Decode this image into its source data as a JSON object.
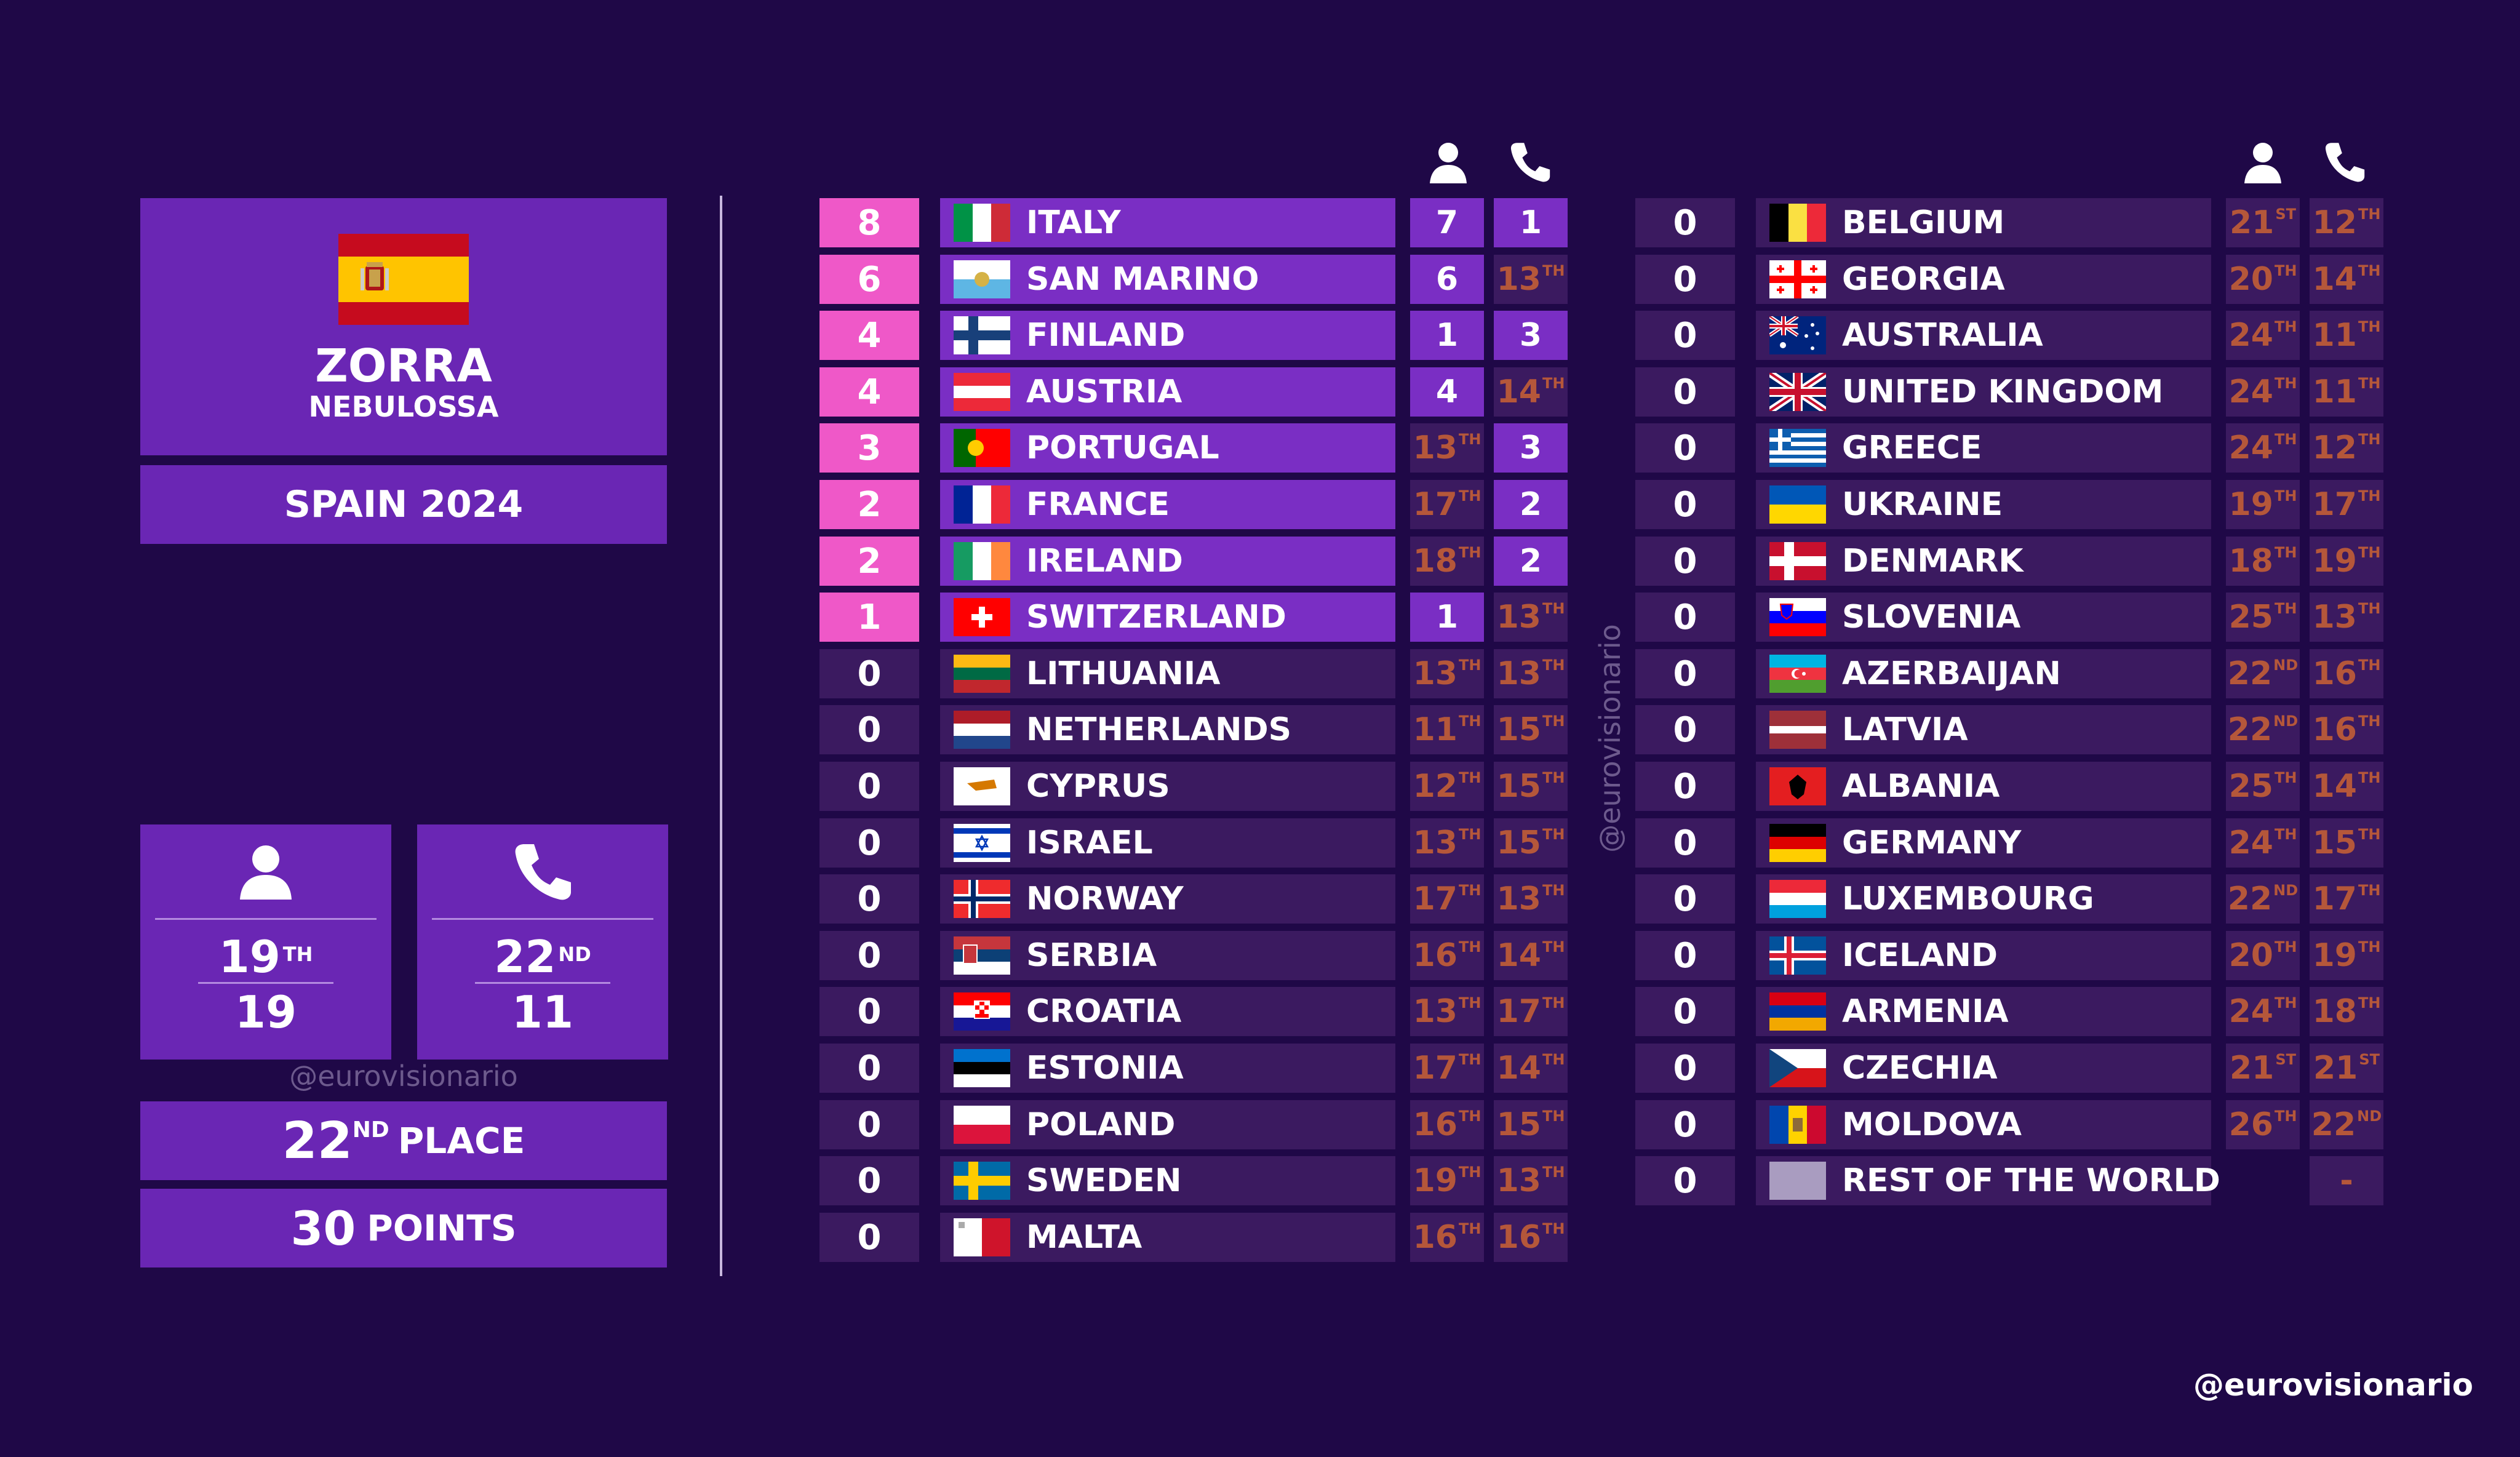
{
  "left": {
    "artist": "ZORRA",
    "song": "NEBULOSSA",
    "country_year": "SPAIN 2024",
    "jury": {
      "rank": "19",
      "rank_suffix": "TH",
      "points": "19"
    },
    "televote": {
      "rank": "22",
      "rank_suffix": "ND",
      "points": "11"
    },
    "watermark": "@eurovisionario",
    "place_num": "22",
    "place_suffix": "ND",
    "place_label": "PLACE",
    "points_num": "30",
    "points_label": "POINTS"
  },
  "vertical_watermark": "@eurovisionario",
  "footer_handle": "@eurovisionario",
  "icons": {
    "jury": "person-icon",
    "televote": "phone-icon"
  },
  "colors": {
    "background": "#1f0847",
    "panel": "#6a26b4",
    "row": "#3b1a60",
    "highlight": "#ef58c8",
    "active": "#7a2ec4",
    "rank_text": "#b5573a"
  },
  "left_table": [
    {
      "points": "8",
      "country": "ITALY",
      "jury": "7",
      "jury_suf": "",
      "tele": "1",
      "tele_suf": "",
      "flag": "it"
    },
    {
      "points": "6",
      "country": "SAN MARINO",
      "jury": "6",
      "jury_suf": "",
      "tele": "13",
      "tele_suf": "TH",
      "flag": "sm"
    },
    {
      "points": "4",
      "country": "FINLAND",
      "jury": "1",
      "jury_suf": "",
      "tele": "3",
      "tele_suf": "",
      "flag": "fi"
    },
    {
      "points": "4",
      "country": "AUSTRIA",
      "jury": "4",
      "jury_suf": "",
      "tele": "14",
      "tele_suf": "TH",
      "flag": "at"
    },
    {
      "points": "3",
      "country": "PORTUGAL",
      "jury": "13",
      "jury_suf": "TH",
      "tele": "3",
      "tele_suf": "",
      "flag": "pt"
    },
    {
      "points": "2",
      "country": "FRANCE",
      "jury": "17",
      "jury_suf": "TH",
      "tele": "2",
      "tele_suf": "",
      "flag": "fr"
    },
    {
      "points": "2",
      "country": "IRELAND",
      "jury": "18",
      "jury_suf": "TH",
      "tele": "2",
      "tele_suf": "",
      "flag": "ie"
    },
    {
      "points": "1",
      "country": "SWITZERLAND",
      "jury": "1",
      "jury_suf": "",
      "tele": "13",
      "tele_suf": "TH",
      "flag": "ch"
    },
    {
      "points": "0",
      "country": "LITHUANIA",
      "jury": "13",
      "jury_suf": "TH",
      "tele": "13",
      "tele_suf": "TH",
      "flag": "lt"
    },
    {
      "points": "0",
      "country": "NETHERLANDS",
      "jury": "11",
      "jury_suf": "TH",
      "tele": "15",
      "tele_suf": "TH",
      "flag": "nl"
    },
    {
      "points": "0",
      "country": "CYPRUS",
      "jury": "12",
      "jury_suf": "TH",
      "tele": "15",
      "tele_suf": "TH",
      "flag": "cy"
    },
    {
      "points": "0",
      "country": "ISRAEL",
      "jury": "13",
      "jury_suf": "TH",
      "tele": "15",
      "tele_suf": "TH",
      "flag": "il"
    },
    {
      "points": "0",
      "country": "NORWAY",
      "jury": "17",
      "jury_suf": "TH",
      "tele": "13",
      "tele_suf": "TH",
      "flag": "no"
    },
    {
      "points": "0",
      "country": "SERBIA",
      "jury": "16",
      "jury_suf": "TH",
      "tele": "14",
      "tele_suf": "TH",
      "flag": "rs"
    },
    {
      "points": "0",
      "country": "CROATIA",
      "jury": "13",
      "jury_suf": "TH",
      "tele": "17",
      "tele_suf": "TH",
      "flag": "hr"
    },
    {
      "points": "0",
      "country": "ESTONIA",
      "jury": "17",
      "jury_suf": "TH",
      "tele": "14",
      "tele_suf": "TH",
      "flag": "ee"
    },
    {
      "points": "0",
      "country": "POLAND",
      "jury": "16",
      "jury_suf": "TH",
      "tele": "15",
      "tele_suf": "TH",
      "flag": "pl"
    },
    {
      "points": "0",
      "country": "SWEDEN",
      "jury": "19",
      "jury_suf": "TH",
      "tele": "13",
      "tele_suf": "TH",
      "flag": "se"
    },
    {
      "points": "0",
      "country": "MALTA",
      "jury": "16",
      "jury_suf": "TH",
      "tele": "16",
      "tele_suf": "TH",
      "flag": "mt"
    }
  ],
  "right_table": [
    {
      "points": "0",
      "country": "BELGIUM",
      "jury": "21",
      "jury_suf": "ST",
      "tele": "12",
      "tele_suf": "TH",
      "flag": "be"
    },
    {
      "points": "0",
      "country": "GEORGIA",
      "jury": "20",
      "jury_suf": "TH",
      "tele": "14",
      "tele_suf": "TH",
      "flag": "ge"
    },
    {
      "points": "0",
      "country": "AUSTRALIA",
      "jury": "24",
      "jury_suf": "TH",
      "tele": "11",
      "tele_suf": "TH",
      "flag": "au"
    },
    {
      "points": "0",
      "country": "UNITED KINGDOM",
      "jury": "24",
      "jury_suf": "TH",
      "tele": "11",
      "tele_suf": "TH",
      "flag": "gb"
    },
    {
      "points": "0",
      "country": "GREECE",
      "jury": "24",
      "jury_suf": "TH",
      "tele": "12",
      "tele_suf": "TH",
      "flag": "gr"
    },
    {
      "points": "0",
      "country": "UKRAINE",
      "jury": "19",
      "jury_suf": "TH",
      "tele": "17",
      "tele_suf": "TH",
      "flag": "ua"
    },
    {
      "points": "0",
      "country": "DENMARK",
      "jury": "18",
      "jury_suf": "TH",
      "tele": "19",
      "tele_suf": "TH",
      "flag": "dk"
    },
    {
      "points": "0",
      "country": "SLOVENIA",
      "jury": "25",
      "jury_suf": "TH",
      "tele": "13",
      "tele_suf": "TH",
      "flag": "si"
    },
    {
      "points": "0",
      "country": "AZERBAIJAN",
      "jury": "22",
      "jury_suf": "ND",
      "tele": "16",
      "tele_suf": "TH",
      "flag": "az"
    },
    {
      "points": "0",
      "country": "LATVIA",
      "jury": "22",
      "jury_suf": "ND",
      "tele": "16",
      "tele_suf": "TH",
      "flag": "lv"
    },
    {
      "points": "0",
      "country": "ALBANIA",
      "jury": "25",
      "jury_suf": "TH",
      "tele": "14",
      "tele_suf": "TH",
      "flag": "al"
    },
    {
      "points": "0",
      "country": "GERMANY",
      "jury": "24",
      "jury_suf": "TH",
      "tele": "15",
      "tele_suf": "TH",
      "flag": "de"
    },
    {
      "points": "0",
      "country": "LUXEMBOURG",
      "jury": "22",
      "jury_suf": "ND",
      "tele": "17",
      "tele_suf": "TH",
      "flag": "lu"
    },
    {
      "points": "0",
      "country": "ICELAND",
      "jury": "20",
      "jury_suf": "TH",
      "tele": "19",
      "tele_suf": "TH",
      "flag": "is"
    },
    {
      "points": "0",
      "country": "ARMENIA",
      "jury": "24",
      "jury_suf": "TH",
      "tele": "18",
      "tele_suf": "TH",
      "flag": "am"
    },
    {
      "points": "0",
      "country": "CZECHIA",
      "jury": "21",
      "jury_suf": "ST",
      "tele": "21",
      "tele_suf": "ST",
      "flag": "cz"
    },
    {
      "points": "0",
      "country": "MOLDOVA",
      "jury": "26",
      "jury_suf": "TH",
      "tele": "22",
      "tele_suf": "ND",
      "flag": "md"
    },
    {
      "points": "0",
      "country": "REST OF THE WORLD",
      "jury": "",
      "jury_suf": "",
      "tele": "-",
      "tele_suf": "",
      "flag": "row"
    }
  ]
}
